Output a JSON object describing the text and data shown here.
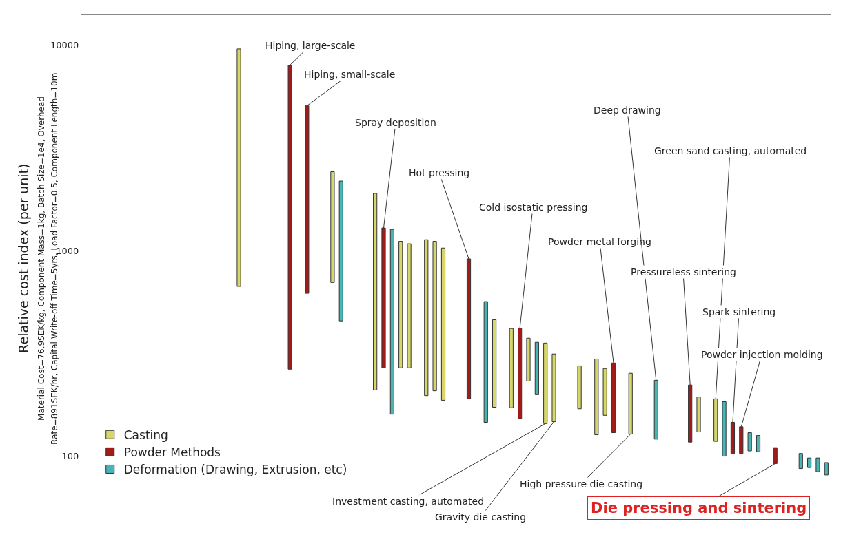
{
  "chart_data": {
    "type": "bar",
    "ylabel": "Relative cost index (per unit)",
    "categories": [
      null,
      null,
      null,
      null,
      null,
      null,
      null,
      null,
      null,
      null,
      null,
      null,
      null,
      null,
      null,
      null,
      null,
      null,
      null,
      null,
      null,
      null,
      null,
      null,
      null,
      null,
      null,
      null,
      null,
      null,
      null,
      null,
      null,
      null,
      null,
      null,
      null,
      null,
      null,
      null,
      null,
      null,
      null,
      null,
      null,
      null,
      null,
      null,
      null,
      null,
      null,
      null,
      null,
      null,
      null,
      null,
      null,
      null,
      null,
      null,
      null,
      null,
      null,
      null,
      null,
      null,
      null,
      null,
      null,
      null,
      null,
      null,
      null,
      null,
      null,
      null,
      null,
      null,
      null,
      null,
      null,
      null,
      null,
      null,
      null,
      null,
      null,
      null
    ],
    "series": [
      {
        "name": "Casting",
        "color": "#d6d66a",
        "base": [
          null,
          null,
          null,
          null,
          null,
          null,
          null,
          null,
          null,
          null,
          null,
          null,
          null,
          null,
          null,
          null,
          null,
          null,
          670,
          null,
          null,
          null,
          null,
          null,
          null,
          null,
          null,
          null,
          null,
          700,
          null,
          null,
          null,
          null,
          210,
          null,
          null,
          269,
          269,
          null,
          197,
          208,
          187,
          null,
          null,
          null,
          null,
          null,
          173,
          null,
          172,
          null,
          232,
          null,
          144,
          147,
          null,
          null,
          170,
          null,
          127,
          158,
          null,
          null,
          128,
          null,
          null,
          null,
          null,
          null,
          null,
          null,
          131,
          null,
          118,
          null,
          null,
          null,
          null,
          null,
          null,
          null,
          null,
          null,
          null,
          null,
          null,
          null
        ],
        "values": [
          null,
          null,
          null,
          null,
          null,
          null,
          null,
          null,
          null,
          null,
          null,
          null,
          null,
          null,
          null,
          null,
          null,
          null,
          8930,
          null,
          null,
          null,
          null,
          null,
          null,
          null,
          null,
          null,
          null,
          1720,
          null,
          null,
          null,
          null,
          1690,
          null,
          null,
          841,
          811,
          null,
          933,
          902,
          843,
          null,
          null,
          null,
          null,
          null,
          288,
          null,
          246,
          null,
          143,
          null,
          211,
          167,
          null,
          null,
          105,
          null,
          170,
          109,
          null,
          null,
          125,
          null,
          null,
          null,
          null,
          null,
          null,
          null,
          63,
          null,
          72,
          null,
          null,
          null,
          null,
          null,
          null,
          null,
          null,
          null,
          null,
          null,
          null,
          null
        ]
      },
      {
        "name": "Powder Methods",
        "color": "#a31a1a",
        "base": [
          null,
          null,
          null,
          null,
          null,
          null,
          null,
          null,
          null,
          null,
          null,
          null,
          null,
          null,
          null,
          null,
          null,
          null,
          null,
          null,
          null,
          null,
          null,
          null,
          265,
          null,
          620,
          null,
          null,
          null,
          null,
          null,
          null,
          null,
          null,
          269,
          null,
          null,
          null,
          null,
          null,
          null,
          null,
          null,
          null,
          190,
          null,
          null,
          null,
          null,
          null,
          152,
          null,
          null,
          null,
          null,
          null,
          null,
          null,
          null,
          null,
          null,
          130,
          null,
          null,
          null,
          null,
          null,
          null,
          null,
          null,
          117,
          null,
          null,
          null,
          null,
          103,
          103,
          null,
          null,
          null,
          92,
          null,
          null,
          null,
          null,
          null,
          null
        ],
        "values": [
          null,
          null,
          null,
          null,
          null,
          null,
          null,
          null,
          null,
          null,
          null,
          null,
          null,
          null,
          null,
          null,
          null,
          null,
          null,
          null,
          null,
          null,
          null,
          null,
          7735,
          null,
          4450,
          null,
          null,
          null,
          null,
          null,
          null,
          null,
          null,
          1021,
          null,
          null,
          null,
          null,
          null,
          null,
          null,
          null,
          null,
          722,
          null,
          null,
          null,
          null,
          null,
          268,
          null,
          null,
          null,
          null,
          null,
          null,
          null,
          null,
          null,
          null,
          154,
          null,
          null,
          null,
          null,
          null,
          null,
          null,
          null,
          105,
          null,
          null,
          null,
          null,
          43,
          36,
          null,
          null,
          null,
          18,
          null,
          null,
          null,
          null,
          null,
          null
        ]
      },
      {
        "name": "Deformation (Drawing, Extrusion, etc)",
        "color": "#48b4b4",
        "base": [
          null,
          null,
          null,
          null,
          null,
          null,
          null,
          null,
          null,
          null,
          null,
          null,
          null,
          null,
          null,
          null,
          null,
          null,
          null,
          null,
          null,
          null,
          null,
          null,
          null,
          null,
          null,
          null,
          null,
          null,
          455,
          null,
          null,
          null,
          null,
          null,
          160,
          null,
          null,
          null,
          null,
          null,
          null,
          null,
          null,
          null,
          null,
          146,
          null,
          null,
          null,
          null,
          null,
          199,
          null,
          null,
          null,
          null,
          null,
          null,
          null,
          null,
          null,
          null,
          null,
          null,
          null,
          121,
          null,
          null,
          null,
          null,
          null,
          null,
          null,
          100,
          null,
          null,
          106,
          105,
          null,
          null,
          null,
          null,
          87,
          88,
          84,
          81
        ],
        "values": [
          null,
          null,
          null,
          null,
          null,
          null,
          null,
          null,
          null,
          null,
          null,
          null,
          null,
          null,
          null,
          null,
          null,
          null,
          null,
          null,
          null,
          null,
          null,
          null,
          null,
          null,
          null,
          null,
          null,
          null,
          1725,
          null,
          null,
          null,
          null,
          null,
          1110,
          null,
          null,
          null,
          null,
          null,
          null,
          null,
          null,
          null,
          null,
          419,
          null,
          null,
          null,
          null,
          null,
          159,
          null,
          null,
          null,
          null,
          null,
          null,
          null,
          null,
          null,
          null,
          null,
          null,
          null,
          113,
          null,
          null,
          null,
          null,
          null,
          null,
          null,
          84,
          null,
          null,
          24,
          21,
          null,
          null,
          null,
          null,
          16,
          10,
          14,
          12
        ]
      }
    ],
    "log": "y",
    "ylim": [
      42,
      14000
    ],
    "yticks": [
      100,
      1000,
      10000
    ],
    "grid": "y",
    "legend": "bottom left",
    "annotations": [
      "Hiping, large-scale",
      "Hiping, small-scale",
      "Spray deposition",
      "Hot pressing",
      "Cold isostatic pressing",
      "Powder metal forging",
      "Deep drawing",
      "Green sand casting, automated",
      "Pressureless sintering",
      "Spark sintering",
      "Powder injection molding",
      "Investment casting, automated",
      "Gravity die casting",
      "High pressure die casting",
      "Die pressing and sintering",
      "Material Cost=76.9SEK/kg, Component Mass=1kg, Batch Size=1e4, Overhead",
      "Rate=891SEK/hr, Capital Write-off Time=5yrs, Load Factor=0.5, Component Length=10m"
    ]
  }
}
